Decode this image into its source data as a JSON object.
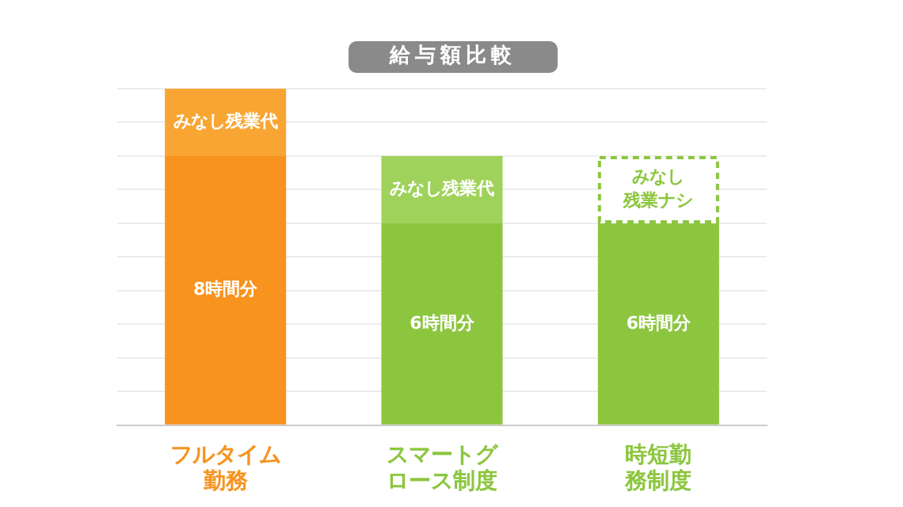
{
  "chart_data": {
    "type": "bar",
    "title": "給与額比較",
    "categories": [
      "フルタイム勤務",
      "スマートグロース制度",
      "時短勤務制度"
    ],
    "stacked": true,
    "grid": "y",
    "legend": false,
    "tick_labels": "x",
    "ylim": [
      0,
      10
    ],
    "yticks": [
      {
        "value": 0,
        "label": null
      },
      {
        "value": 1,
        "label": null
      },
      {
        "value": 2,
        "label": null
      },
      {
        "value": 3,
        "label": null
      },
      {
        "value": 4,
        "label": null
      },
      {
        "value": 5,
        "label": null
      },
      {
        "value": 6,
        "label": null
      },
      {
        "value": 7,
        "label": null
      },
      {
        "value": 8,
        "label": null
      },
      {
        "value": 9,
        "label": null
      },
      {
        "value": 10,
        "label": null
      }
    ],
    "series": [
      {
        "colors": [
          "#f7931e",
          "#8cc63f",
          "#8cc63f"
        ],
        "values": [
          8,
          6,
          6
        ],
        "value_labels": [
          "8時間分",
          "6時間分",
          "6時間分"
        ]
      },
      {
        "colors": [
          "#f9a533",
          "#9fd25a",
          "#ffffff"
        ],
        "values": [
          2,
          2,
          2
        ],
        "value_labels": [
          "みなし残業代",
          "みなし残業代",
          "みなし残業ナシ"
        ]
      }
    ]
  }
}
